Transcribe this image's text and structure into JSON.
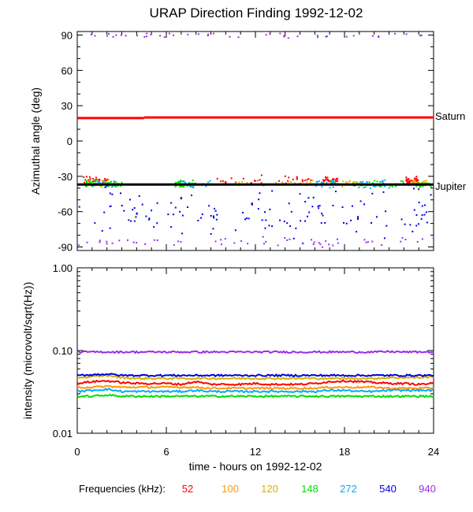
{
  "chart_data": [
    {
      "type": "scatter",
      "title": "URAP Direction Finding  1992-12-02",
      "xlabel": "",
      "ylabel": "Azimuthal angle (deg)",
      "xlim": [
        0,
        24
      ],
      "ylim": [
        -93,
        93
      ],
      "xticks": [
        0,
        6,
        12,
        18,
        24
      ],
      "yticks": [
        90,
        60,
        30,
        0,
        -30,
        -60,
        -90
      ],
      "ytick_labels": [
        "90",
        "60",
        "30",
        "0",
        "-30",
        "-60",
        "-90"
      ],
      "reference_lines": [
        {
          "name": "Saturn",
          "color": "#ff0000",
          "segments": [
            [
              0,
              4.5,
              19.5
            ],
            [
              4.5,
              24,
              20
            ]
          ]
        },
        {
          "name": "Jupiter",
          "color": "#000000",
          "segments": [
            [
              0,
              24,
              -37
            ]
          ]
        }
      ],
      "scatter_clusters": [
        {
          "color": "#ff0000",
          "ycenter": -33,
          "yspread": 5,
          "xranges": [
            [
              0.2,
              2
            ],
            [
              9,
              16
            ],
            [
              16.5,
              17.5
            ],
            [
              22,
              23
            ]
          ],
          "count": 130
        },
        {
          "color": "#e6b400",
          "ycenter": -35,
          "yspread": 4,
          "xranges": [
            [
              0.5,
              2.5
            ],
            [
              9.5,
              16
            ],
            [
              17,
              19
            ],
            [
              22.5,
              23.5
            ]
          ],
          "count": 110
        },
        {
          "color": "#00e000",
          "ycenter": -36,
          "yspread": 4,
          "xranges": [
            [
              0.5,
              3
            ],
            [
              6.5,
              8
            ],
            [
              18.5,
              24
            ]
          ],
          "count": 170
        },
        {
          "color": "#00aaff",
          "ycenter": -36,
          "yspread": 5,
          "xranges": [
            [
              1,
              2.5
            ],
            [
              7,
              9
            ],
            [
              16,
              17.5
            ],
            [
              19,
              21
            ]
          ],
          "count": 90
        },
        {
          "color": "#0000e0",
          "ycenter": -60,
          "yspread": 30,
          "xranges": [
            [
              0,
              24
            ]
          ],
          "count": 140
        },
        {
          "color": "#9a2ee6",
          "ycenter": 90,
          "yspread": 3,
          "xranges": [
            [
              0,
              24
            ]
          ],
          "count": 45
        },
        {
          "color": "#9a2ee6",
          "ycenter": -85,
          "yspread": 5,
          "xranges": [
            [
              0,
              24
            ]
          ],
          "count": 55
        }
      ],
      "labels_right": [
        "Saturn",
        "Jupiter"
      ]
    },
    {
      "type": "line",
      "title": "",
      "xlabel": "time - hours on 1992-12-02",
      "ylabel": "intensity (microvolt/sqrt(Hz))",
      "xlim": [
        0,
        24
      ],
      "ylim": [
        0.01,
        1.0
      ],
      "yscale": "log",
      "xticks": [
        0,
        6,
        12,
        18,
        24
      ],
      "xtick_labels": [
        "0",
        "6",
        "12",
        "18",
        "24"
      ],
      "yticks": [
        1.0,
        0.1,
        0.01
      ],
      "ytick_labels": [
        "1.00",
        "0.10",
        "0.01"
      ],
      "legend_title": "Frequencies (kHz):",
      "series": [
        {
          "name": "52",
          "color": "#ff0000",
          "values": [
            0.04,
            0.042,
            0.043,
            0.041,
            0.04,
            0.04,
            0.04,
            0.039,
            0.042,
            0.039,
            0.039,
            0.039,
            0.04,
            0.039,
            0.039,
            0.039,
            0.04,
            0.042,
            0.043,
            0.042,
            0.041,
            0.04,
            0.04,
            0.039,
            0.04
          ]
        },
        {
          "name": "100",
          "color": "#ff9900",
          "values": [
            0.036,
            0.036,
            0.037,
            0.036,
            0.036,
            0.036,
            0.036,
            0.036,
            0.036,
            0.035,
            0.035,
            0.035,
            0.035,
            0.035,
            0.035,
            0.035,
            0.035,
            0.036,
            0.036,
            0.036,
            0.036,
            0.035,
            0.035,
            0.035,
            0.035
          ]
        },
        {
          "name": "120",
          "color": "#d4b400",
          "values": [
            0.047,
            0.048,
            0.05,
            0.047,
            0.046,
            0.046,
            0.046,
            0.046,
            0.046,
            0.046,
            0.046,
            0.046,
            0.046,
            0.046,
            0.046,
            0.046,
            0.046,
            0.046,
            0.046,
            0.046,
            0.046,
            0.047,
            0.047,
            0.047,
            0.048
          ]
        },
        {
          "name": "148",
          "color": "#00e000",
          "values": [
            0.028,
            0.028,
            0.029,
            0.028,
            0.028,
            0.028,
            0.028,
            0.028,
            0.028,
            0.028,
            0.028,
            0.028,
            0.028,
            0.028,
            0.028,
            0.028,
            0.028,
            0.028,
            0.028,
            0.028,
            0.028,
            0.028,
            0.028,
            0.028,
            0.028
          ]
        },
        {
          "name": "272",
          "color": "#00aaff",
          "values": [
            0.032,
            0.033,
            0.034,
            0.032,
            0.032,
            0.032,
            0.032,
            0.032,
            0.033,
            0.032,
            0.032,
            0.032,
            0.032,
            0.032,
            0.032,
            0.032,
            0.032,
            0.033,
            0.033,
            0.032,
            0.032,
            0.033,
            0.033,
            0.033,
            0.033
          ]
        },
        {
          "name": "540",
          "color": "#0000e0",
          "values": [
            0.05,
            0.051,
            0.052,
            0.05,
            0.05,
            0.05,
            0.05,
            0.05,
            0.05,
            0.05,
            0.05,
            0.05,
            0.05,
            0.05,
            0.05,
            0.05,
            0.05,
            0.05,
            0.05,
            0.05,
            0.05,
            0.05,
            0.05,
            0.05,
            0.05
          ]
        },
        {
          "name": "940",
          "color": "#9a2ee6",
          "values": [
            0.096,
            0.096,
            0.096,
            0.096,
            0.096,
            0.096,
            0.096,
            0.096,
            0.096,
            0.096,
            0.096,
            0.096,
            0.096,
            0.096,
            0.096,
            0.096,
            0.096,
            0.096,
            0.096,
            0.096,
            0.096,
            0.097,
            0.096,
            0.096,
            0.096
          ]
        }
      ],
      "x": [
        0,
        1,
        2,
        3,
        4,
        5,
        6,
        7,
        8,
        9,
        10,
        11,
        12,
        13,
        14,
        15,
        16,
        17,
        18,
        19,
        20,
        21,
        22,
        23,
        24
      ]
    }
  ]
}
